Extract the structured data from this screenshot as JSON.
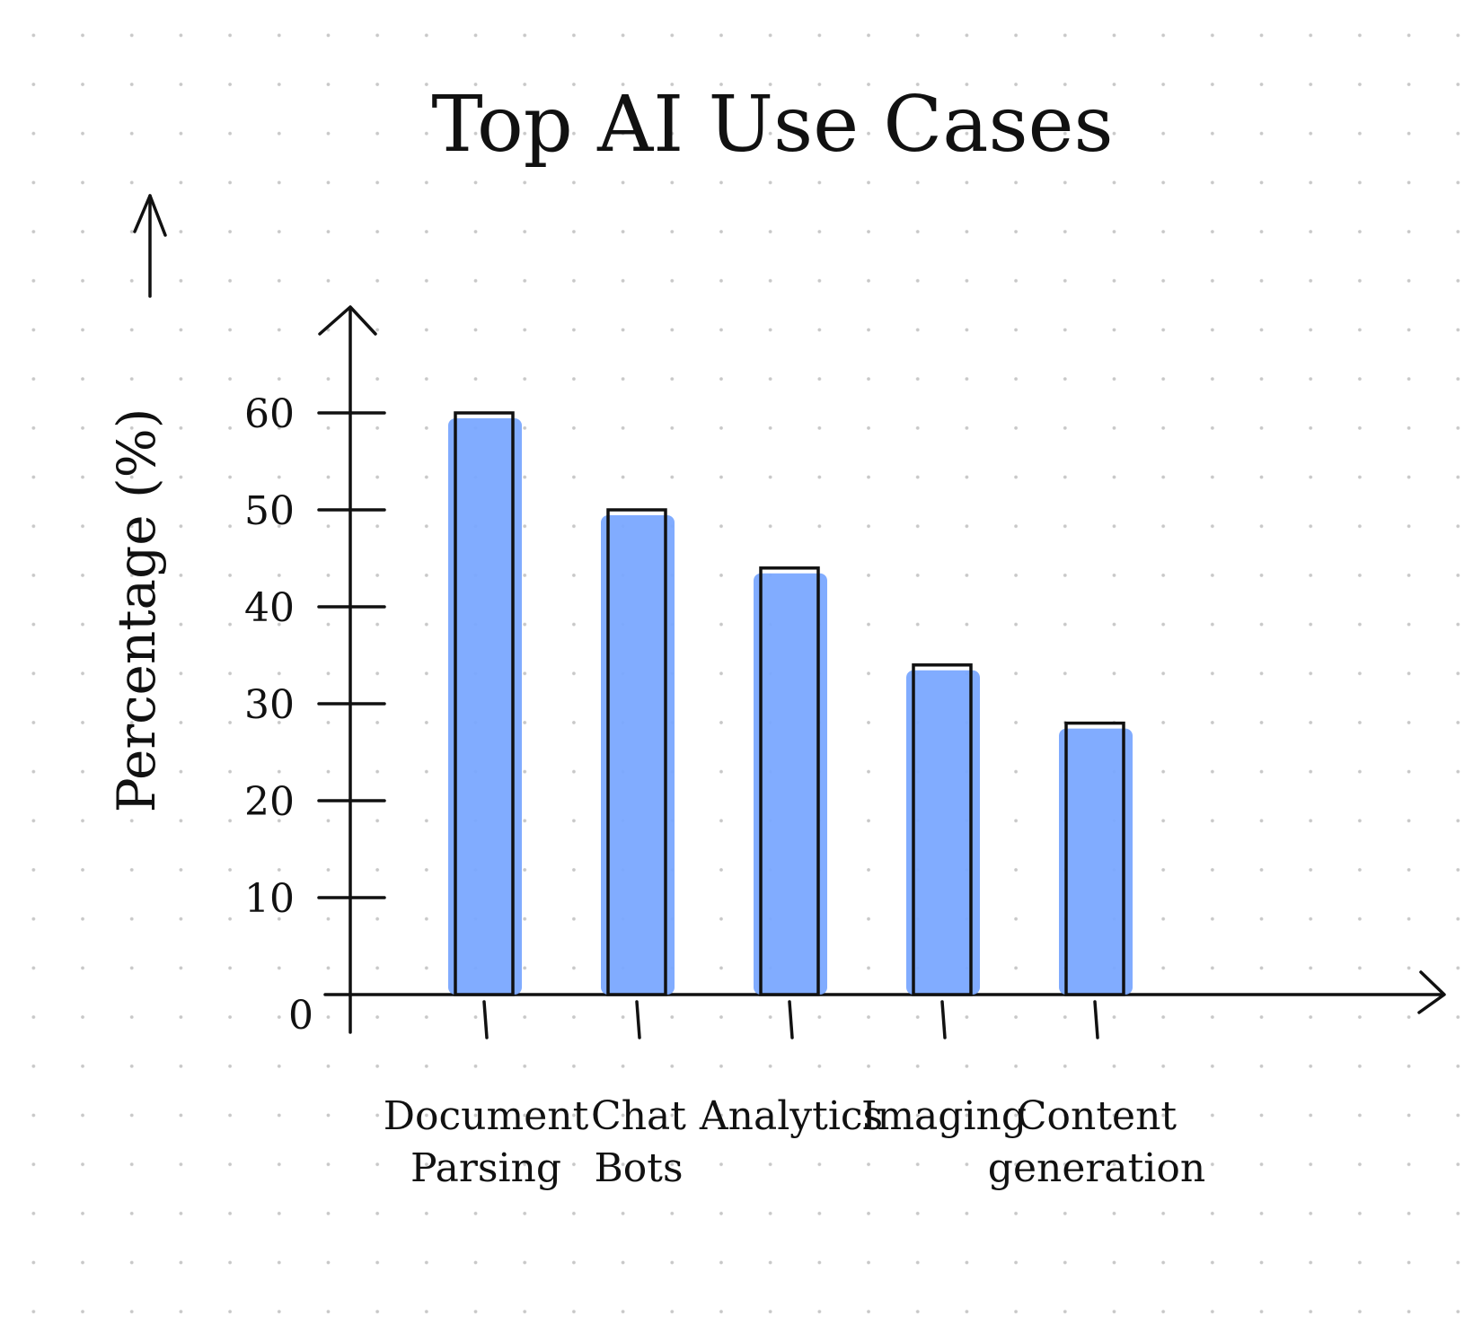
{
  "chart_data": {
    "type": "bar",
    "title": "Top AI Use Cases",
    "ylabel": "Percentage (%)",
    "xlabel": "",
    "categories": [
      [
        "Document",
        "Parsing"
      ],
      [
        "Chat",
        "Bots"
      ],
      [
        "Analytics"
      ],
      [
        "Imaging"
      ],
      [
        "Content",
        "generation"
      ]
    ],
    "values": [
      60,
      50,
      44,
      34,
      28
    ],
    "yticks": [
      0,
      10,
      20,
      30,
      40,
      50,
      60
    ],
    "ylim": [
      0,
      70
    ],
    "grid": false,
    "colors": {
      "bar": "#7aa8ff",
      "ink": "#111111",
      "background": "#ffffff",
      "dots": "#c8c8c8"
    }
  }
}
